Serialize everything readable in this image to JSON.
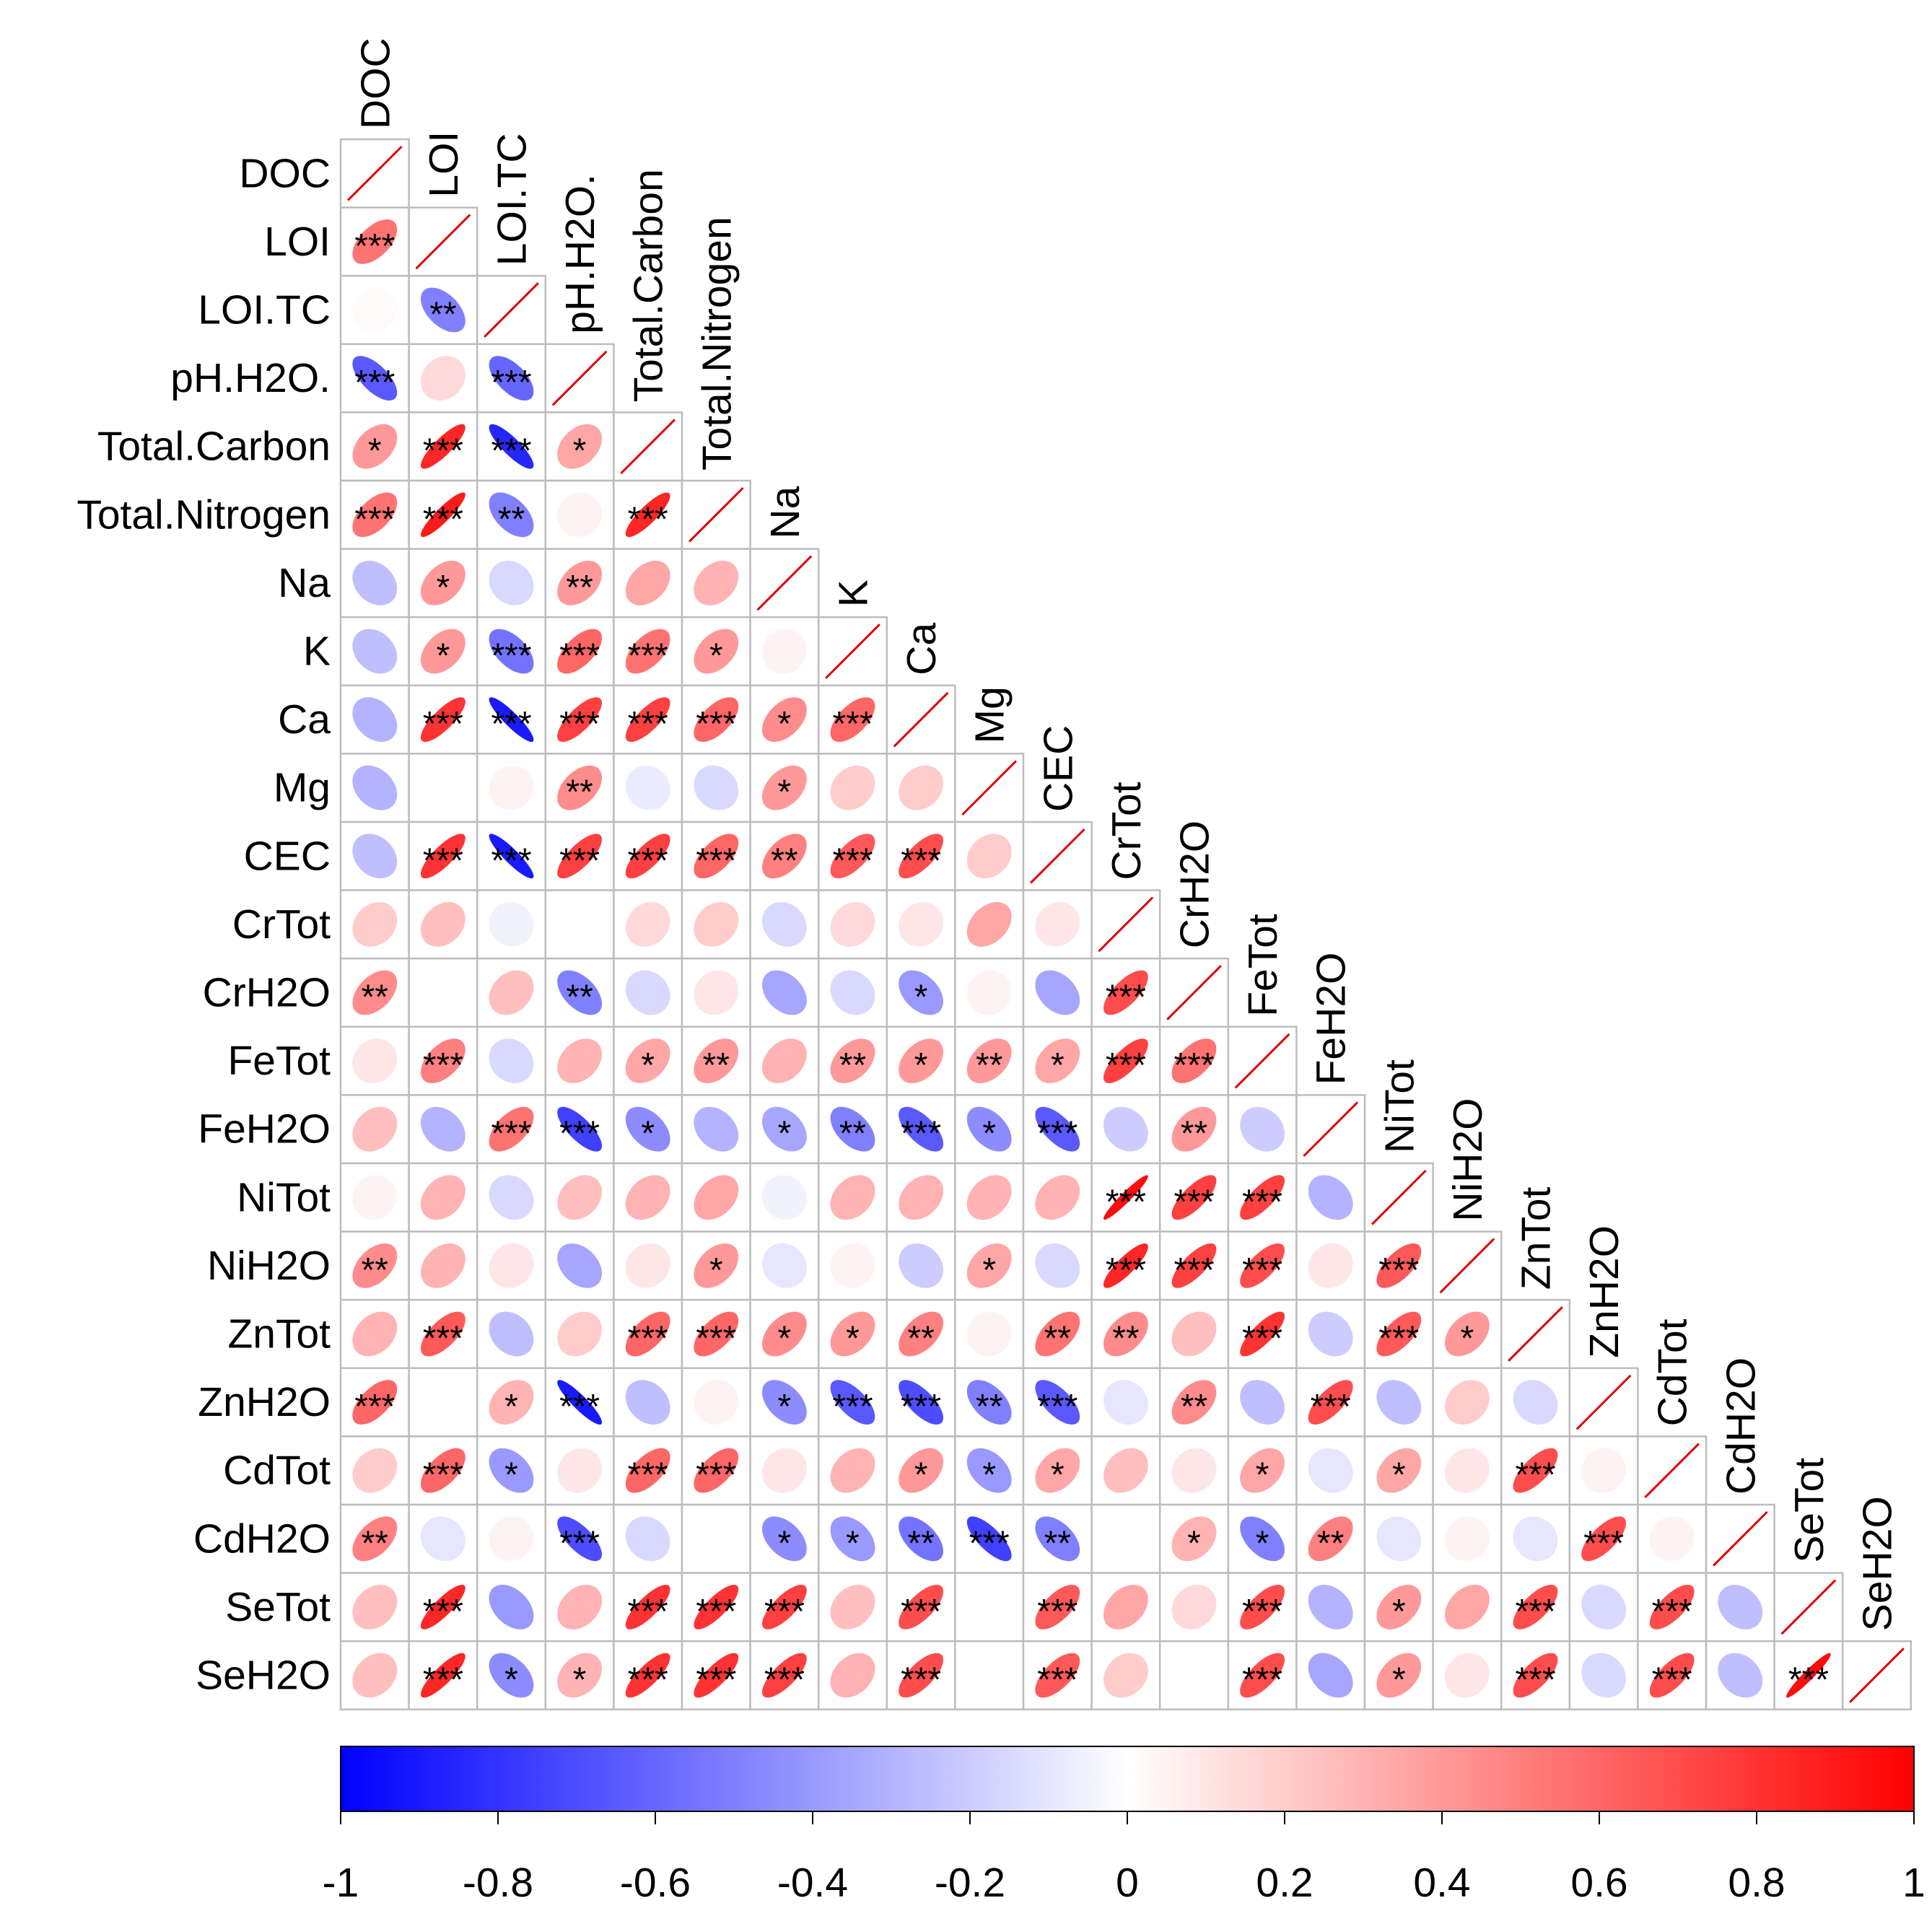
{
  "chart_data": {
    "type": "heatmap",
    "subtype": "correlation-ellipse-lower-triangle",
    "variables": [
      "DOC",
      "LOI",
      "LOI.TC",
      "pH.H2O.",
      "Total.Carbon",
      "Total.Nitrogen",
      "Na",
      "K",
      "Ca",
      "Mg",
      "CEC",
      "CrTot",
      "CrH2O",
      "FeTot",
      "FeH2O",
      "NiTot",
      "NiH2O",
      "ZnTot",
      "ZnH2O",
      "CdTot",
      "CdH2O",
      "SeTot",
      "SeH2O"
    ],
    "rows": [
      {
        "r": [],
        "s": []
      },
      {
        "r": [
          0.55
        ],
        "s": [
          "***"
        ]
      },
      {
        "r": [
          0.02,
          -0.5
        ],
        "s": [
          "",
          "**"
        ]
      },
      {
        "r": [
          -0.65,
          0.15,
          -0.6
        ],
        "s": [
          "***",
          "",
          "***"
        ]
      },
      {
        "r": [
          0.4,
          0.85,
          -0.85,
          0.35
        ],
        "s": [
          "*",
          "***",
          "***",
          "*"
        ]
      },
      {
        "r": [
          0.55,
          0.9,
          -0.5,
          0.05,
          0.85
        ],
        "s": [
          "***",
          "***",
          "**",
          "",
          "***"
        ]
      },
      {
        "r": [
          -0.25,
          0.4,
          -0.15,
          0.4,
          0.35,
          0.3
        ],
        "s": [
          "",
          "*",
          "",
          "**",
          "",
          ""
        ]
      },
      {
        "r": [
          -0.25,
          0.4,
          -0.55,
          0.6,
          0.55,
          0.4,
          0.05
        ],
        "s": [
          "",
          "*",
          "***",
          "***",
          "***",
          "*",
          ""
        ]
      },
      {
        "r": [
          -0.3,
          0.8,
          -0.9,
          0.75,
          0.75,
          0.6,
          0.45,
          0.6
        ],
        "s": [
          "",
          "***",
          "***",
          "***",
          "***",
          "***",
          "*",
          "***"
        ]
      },
      {
        "r": [
          -0.3,
          0.0,
          0.05,
          0.45,
          -0.08,
          -0.15,
          0.4,
          0.2,
          0.2
        ],
        "s": [
          "",
          "",
          "",
          "**",
          "",
          "",
          "*",
          "",
          ""
        ]
      },
      {
        "r": [
          -0.25,
          0.8,
          -0.9,
          0.75,
          0.75,
          0.6,
          0.5,
          0.65,
          0.7,
          0.2
        ],
        "s": [
          "",
          "***",
          "***",
          "***",
          "***",
          "***",
          "**",
          "***",
          "***",
          ""
        ]
      },
      {
        "r": [
          0.2,
          0.25,
          -0.05,
          0.0,
          0.15,
          0.2,
          -0.15,
          0.15,
          0.1,
          0.35,
          0.1
        ],
        "s": [
          "",
          "",
          "",
          "",
          "",
          "",
          "",
          "",
          "",
          "",
          ""
        ]
      },
      {
        "r": [
          0.45,
          0.0,
          0.25,
          -0.5,
          -0.15,
          0.1,
          -0.35,
          -0.15,
          -0.4,
          0.05,
          -0.35,
          0.7
        ],
        "s": [
          "**",
          "",
          "",
          "**",
          "",
          "",
          "",
          "",
          "*",
          "",
          "",
          "***"
        ]
      },
      {
        "r": [
          0.1,
          0.5,
          -0.15,
          0.3,
          0.35,
          0.4,
          0.3,
          0.4,
          0.4,
          0.4,
          0.35,
          0.75,
          0.55
        ],
        "s": [
          "",
          "***",
          "",
          "",
          "*",
          "**",
          "",
          "**",
          "*",
          "**",
          "*",
          "***",
          "***"
        ]
      },
      {
        "r": [
          0.25,
          -0.3,
          0.55,
          -0.75,
          -0.45,
          -0.3,
          -0.35,
          -0.5,
          -0.65,
          -0.45,
          -0.65,
          -0.2,
          0.4,
          -0.2
        ],
        "s": [
          "",
          "",
          "***",
          "***",
          "*",
          "",
          "*",
          "**",
          "***",
          "*",
          "***",
          "",
          "**",
          ""
        ]
      },
      {
        "r": [
          0.05,
          0.3,
          -0.15,
          0.25,
          0.3,
          0.35,
          -0.05,
          0.3,
          0.3,
          0.3,
          0.3,
          0.95,
          0.75,
          0.75,
          -0.3
        ],
        "s": [
          "",
          "",
          "",
          "",
          "",
          "",
          "",
          "",
          "",
          "",
          "",
          "***",
          "***",
          "***",
          ""
        ]
      },
      {
        "r": [
          0.45,
          0.3,
          0.1,
          -0.35,
          0.1,
          0.4,
          -0.1,
          0.05,
          -0.2,
          0.35,
          -0.15,
          0.85,
          0.75,
          0.7,
          0.1,
          0.65
        ],
        "s": [
          "**",
          "",
          "",
          "",
          "",
          "*",
          "",
          "",
          "",
          "*",
          "",
          "***",
          "***",
          "***",
          "",
          "***"
        ]
      },
      {
        "r": [
          0.3,
          0.65,
          -0.25,
          0.2,
          0.6,
          0.6,
          0.45,
          0.4,
          0.5,
          0.05,
          0.55,
          0.45,
          0.25,
          0.8,
          -0.2,
          0.65,
          0.4
        ],
        "s": [
          "",
          "***",
          "",
          "",
          "***",
          "***",
          "*",
          "*",
          "**",
          "",
          "**",
          "**",
          "",
          "***",
          "",
          "***",
          "*"
        ]
      },
      {
        "r": [
          0.6,
          0.0,
          0.3,
          -0.9,
          -0.25,
          0.05,
          -0.45,
          -0.65,
          -0.7,
          -0.5,
          -0.65,
          -0.1,
          0.45,
          -0.25,
          0.7,
          -0.25,
          0.2,
          -0.15
        ],
        "s": [
          "***",
          "",
          "*",
          "***",
          "",
          "",
          "*",
          "***",
          "***",
          "**",
          "***",
          "",
          "**",
          "",
          "***",
          "",
          "",
          ""
        ]
      },
      {
        "r": [
          0.2,
          0.6,
          -0.4,
          0.1,
          0.6,
          0.6,
          0.1,
          0.3,
          0.4,
          -0.4,
          0.35,
          0.25,
          0.1,
          0.35,
          -0.1,
          0.35,
          0.1,
          0.7,
          0.05
        ],
        "s": [
          "",
          "***",
          "*",
          "",
          "***",
          "***",
          "",
          "",
          "*",
          "*",
          "*",
          "",
          "",
          "*",
          "",
          "*",
          "",
          "***",
          ""
        ]
      },
      {
        "r": [
          0.5,
          -0.1,
          0.05,
          -0.7,
          -0.15,
          0.0,
          -0.45,
          -0.4,
          -0.55,
          -0.75,
          -0.5,
          0.0,
          0.3,
          -0.5,
          0.5,
          -0.1,
          0.05,
          -0.1,
          0.7,
          0.05
        ],
        "s": [
          "**",
          "",
          "",
          "***",
          "",
          "",
          "*",
          "*",
          "**",
          "***",
          "**",
          "",
          "*",
          "*",
          "**",
          "",
          "",
          "",
          "***",
          ""
        ]
      },
      {
        "r": [
          0.25,
          0.85,
          -0.4,
          0.3,
          0.8,
          0.8,
          0.75,
          0.25,
          0.7,
          0.0,
          0.65,
          0.35,
          0.15,
          0.7,
          -0.3,
          0.4,
          0.35,
          0.7,
          -0.15,
          0.7,
          -0.25
        ],
        "s": [
          "",
          "***",
          "",
          "",
          "***",
          "***",
          "***",
          "",
          "***",
          "",
          "***",
          "",
          "",
          "***",
          "",
          "*",
          "",
          "***",
          "",
          "***",
          ""
        ]
      },
      {
        "r": [
          0.25,
          0.85,
          -0.45,
          0.3,
          0.8,
          0.8,
          0.75,
          0.3,
          0.7,
          0.0,
          0.65,
          0.2,
          0.0,
          0.7,
          -0.35,
          0.4,
          0.1,
          0.7,
          -0.15,
          0.7,
          -0.25,
          0.95
        ],
        "s": [
          "",
          "***",
          "*",
          "*",
          "***",
          "***",
          "***",
          "",
          "***",
          "",
          "***",
          "",
          "",
          "***",
          "",
          "*",
          "",
          "***",
          "",
          "***",
          "",
          "***"
        ]
      }
    ],
    "colorbar": {
      "ticks": [
        "-1",
        "-0.8",
        "-0.6",
        "-0.4",
        "-0.2",
        "0",
        "0.2",
        "0.4",
        "0.6",
        "0.8",
        "1"
      ],
      "range": [
        -1,
        1
      ],
      "colors": {
        "neg": "#0000ff",
        "mid": "#ffffff",
        "pos": "#ff0000"
      }
    },
    "significance_legend": "",
    "title": ""
  }
}
